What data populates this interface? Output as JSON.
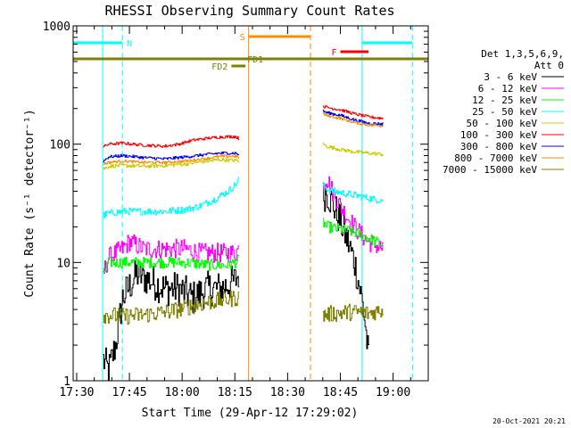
{
  "chart_data": {
    "type": "line",
    "title": "RHESSI Observing Summary Count Rates",
    "xlabel": "Start Time (29-Apr-12 17:29:02)",
    "ylabel": "Count Rate (s⁻¹ detector⁻¹)",
    "yscale": "log",
    "ylim": [
      1,
      1000
    ],
    "xlim_minutes": [
      0,
      101
    ],
    "x_ticks": [
      {
        "t": 1,
        "label": "17:30"
      },
      {
        "t": 16,
        "label": "17:45"
      },
      {
        "t": 31,
        "label": "18:00"
      },
      {
        "t": 46,
        "label": "18:15"
      },
      {
        "t": 61,
        "label": "18:30"
      },
      {
        "t": 76,
        "label": "18:45"
      },
      {
        "t": 91,
        "label": "19:00"
      }
    ],
    "y_ticks": [
      {
        "v": 1,
        "label": "1"
      },
      {
        "v": 10,
        "label": "10"
      },
      {
        "v": 100,
        "label": "100"
      },
      {
        "v": 1000,
        "label": "1000"
      }
    ],
    "legend": {
      "header": [
        "Det 1,3,5,6,9,",
        "Att 0"
      ],
      "placement": "right"
    },
    "series": [
      {
        "name": "3 - 6 keV",
        "color": "#000000",
        "seg1": [
          [
            8.5,
            1.5
          ],
          [
            10,
            1.2
          ],
          [
            12,
            2
          ],
          [
            14,
            5
          ],
          [
            18,
            8
          ],
          [
            22,
            7
          ],
          [
            26,
            6
          ],
          [
            30,
            6
          ],
          [
            34,
            5
          ],
          [
            38,
            6
          ],
          [
            42,
            6
          ],
          [
            46,
            7
          ],
          [
            47,
            8
          ]
        ],
        "seg2": [
          [
            71,
            36
          ],
          [
            72,
            40
          ],
          [
            74,
            30
          ],
          [
            76,
            22
          ],
          [
            78,
            15
          ],
          [
            80,
            10
          ],
          [
            82,
            5
          ],
          [
            83,
            3
          ],
          [
            84,
            1.5
          ]
        ],
        "noise": 0.25
      },
      {
        "name": "6 - 12 keV",
        "color": "#ff00ff",
        "seg1": [
          [
            8.5,
            8
          ],
          [
            10,
            11
          ],
          [
            14,
            13
          ],
          [
            16,
            15
          ],
          [
            20,
            13
          ],
          [
            24,
            13
          ],
          [
            28,
            13
          ],
          [
            32,
            13
          ],
          [
            36,
            12
          ],
          [
            40,
            12
          ],
          [
            44,
            12
          ],
          [
            46,
            12
          ],
          [
            47,
            13
          ]
        ],
        "seg2": [
          [
            71,
            48
          ],
          [
            72,
            52
          ],
          [
            74,
            38
          ],
          [
            76,
            30
          ],
          [
            78,
            24
          ],
          [
            80,
            20
          ],
          [
            82,
            17
          ],
          [
            84,
            15
          ],
          [
            86,
            14
          ],
          [
            88,
            13
          ]
        ],
        "noise": 0.14
      },
      {
        "name": "12 - 25 keV",
        "color": "#00ff00",
        "seg1": [
          [
            8.5,
            8
          ],
          [
            10,
            10
          ],
          [
            14,
            10
          ],
          [
            20,
            10
          ],
          [
            26,
            10
          ],
          [
            32,
            10
          ],
          [
            38,
            9.5
          ],
          [
            44,
            9.5
          ],
          [
            46,
            10
          ],
          [
            47,
            10.5
          ]
        ],
        "seg2": [
          [
            71,
            22
          ],
          [
            72,
            20
          ],
          [
            76,
            19
          ],
          [
            80,
            18
          ],
          [
            84,
            16
          ],
          [
            86,
            15
          ],
          [
            88,
            14
          ]
        ],
        "noise": 0.08
      },
      {
        "name": "25 - 50 keV",
        "color": "#00ffff",
        "seg1": [
          [
            8.5,
            25
          ],
          [
            10,
            26
          ],
          [
            14,
            27
          ],
          [
            20,
            27
          ],
          [
            26,
            27
          ],
          [
            32,
            28
          ],
          [
            36,
            30
          ],
          [
            40,
            34
          ],
          [
            44,
            40
          ],
          [
            46,
            45
          ],
          [
            47,
            50
          ]
        ],
        "seg2": [
          [
            71,
            45
          ],
          [
            72,
            42
          ],
          [
            74,
            40
          ],
          [
            78,
            38
          ],
          [
            82,
            36
          ],
          [
            86,
            34
          ],
          [
            88,
            34
          ]
        ],
        "noise": 0.05
      },
      {
        "name": "50 - 100 keV",
        "color": "#cccc00",
        "seg1": [
          [
            8.5,
            62
          ],
          [
            10,
            65
          ],
          [
            14,
            66
          ],
          [
            20,
            65
          ],
          [
            26,
            66
          ],
          [
            32,
            68
          ],
          [
            38,
            72
          ],
          [
            42,
            74
          ],
          [
            46,
            73
          ],
          [
            47,
            72
          ]
        ],
        "seg2": [
          [
            71,
            100
          ],
          [
            72,
            96
          ],
          [
            76,
            90
          ],
          [
            80,
            86
          ],
          [
            84,
            84
          ],
          [
            88,
            82
          ]
        ],
        "noise": 0.025
      },
      {
        "name": "100 - 300 keV",
        "color": "#ff0000",
        "seg1": [
          [
            8.5,
            95
          ],
          [
            10,
            100
          ],
          [
            14,
            102
          ],
          [
            20,
            98
          ],
          [
            26,
            96
          ],
          [
            30,
            100
          ],
          [
            34,
            108
          ],
          [
            38,
            112
          ],
          [
            42,
            115
          ],
          [
            46,
            116
          ],
          [
            47,
            112
          ]
        ],
        "seg2": [
          [
            71,
            210
          ],
          [
            72,
            205
          ],
          [
            76,
            195
          ],
          [
            80,
            180
          ],
          [
            84,
            170
          ],
          [
            88,
            165
          ]
        ],
        "noise": 0.02
      },
      {
        "name": "300 - 800 keV",
        "color": "#0000ff",
        "seg1": [
          [
            8.5,
            72
          ],
          [
            10,
            78
          ],
          [
            14,
            80
          ],
          [
            20,
            77
          ],
          [
            26,
            75
          ],
          [
            32,
            78
          ],
          [
            38,
            82
          ],
          [
            42,
            84
          ],
          [
            46,
            84
          ],
          [
            47,
            82
          ]
        ],
        "seg2": [
          [
            71,
            190
          ],
          [
            72,
            185
          ],
          [
            76,
            175
          ],
          [
            80,
            160
          ],
          [
            84,
            150
          ],
          [
            88,
            148
          ]
        ],
        "noise": 0.02
      },
      {
        "name": "800 - 7000 keV",
        "color": "#ff8c00",
        "seg1": [
          [
            8.5,
            68
          ],
          [
            10,
            70
          ],
          [
            14,
            72
          ],
          [
            20,
            70
          ],
          [
            26,
            70
          ],
          [
            32,
            72
          ],
          [
            38,
            76
          ],
          [
            42,
            79
          ],
          [
            46,
            79
          ],
          [
            47,
            77
          ]
        ],
        "seg2": [
          [
            71,
            180
          ],
          [
            72,
            175
          ],
          [
            76,
            165
          ],
          [
            80,
            152
          ],
          [
            84,
            145
          ],
          [
            88,
            143
          ]
        ],
        "noise": 0.018
      },
      {
        "name": "7000 - 15000 keV",
        "color": "#808000",
        "seg1": [
          [
            8.5,
            3.6
          ],
          [
            10,
            3.6
          ],
          [
            14,
            3.5
          ],
          [
            20,
            3.6
          ],
          [
            26,
            3.8
          ],
          [
            30,
            4
          ],
          [
            34,
            4.3
          ],
          [
            38,
            4.6
          ],
          [
            42,
            4.8
          ],
          [
            46,
            5
          ],
          [
            47,
            5
          ]
        ],
        "seg2": [
          [
            71,
            3.6
          ],
          [
            74,
            3.7
          ],
          [
            78,
            3.8
          ],
          [
            82,
            3.8
          ],
          [
            84,
            3.7
          ],
          [
            88,
            4
          ]
        ],
        "noise": 0.12
      }
    ],
    "annotations": {
      "vlines": [
        {
          "t": 8.4,
          "color": "#00ffff",
          "style": "solid"
        },
        {
          "t": 14,
          "color": "#00ffff",
          "style": "dashed"
        },
        {
          "t": 82.2,
          "color": "#00ffff",
          "style": "solid"
        },
        {
          "t": 96.5,
          "color": "#00ffff",
          "style": "dashed"
        },
        {
          "t": 49.9,
          "color": "#ff8c00",
          "style": "solid"
        },
        {
          "t": 67.5,
          "color": "#ff8c00",
          "style": "dashed"
        }
      ],
      "bars": [
        {
          "label": "N",
          "color": "#00ffff",
          "t1": 0,
          "t2": 14,
          "y": 48,
          "label_side": "right"
        },
        {
          "label": "N",
          "color": "#00ffff",
          "t1": 82.2,
          "t2": 96.5,
          "y": 48,
          "label_side": "none"
        },
        {
          "label": "S",
          "color": "#ff8c00",
          "t1": 49.9,
          "t2": 67.5,
          "y": 41,
          "label_side": "left"
        },
        {
          "label": "F",
          "color": "#ff0000",
          "t1": 76,
          "t2": 84,
          "y": 58,
          "label_side": "left"
        },
        {
          "label": "FD1",
          "color": "#808000",
          "t1": 0,
          "t2": 101,
          "y": 66,
          "label_side": "mid"
        },
        {
          "label": "FD2",
          "color": "#808000",
          "t1": 45,
          "t2": 49,
          "y": 74,
          "label_side": "left"
        }
      ]
    }
  },
  "footer": {
    "timestamp": "20-Oct-2021 20:21"
  }
}
